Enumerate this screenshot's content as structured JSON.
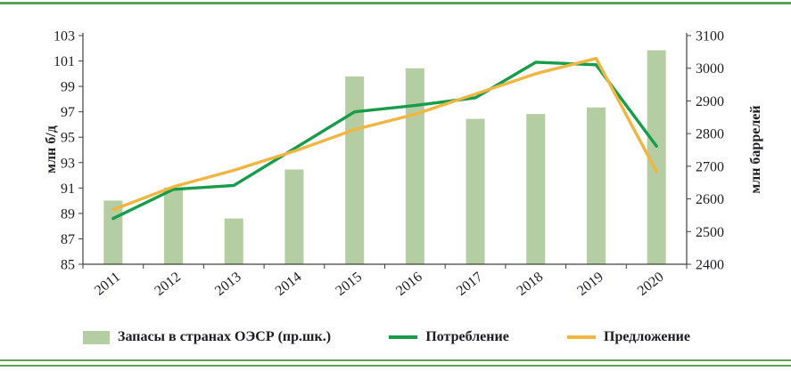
{
  "page": {
    "divider_color": "#5aa457",
    "text_color": "#1c1c24",
    "axis_color": "#404040"
  },
  "chart_data": {
    "type": "combo-bar-line",
    "categories": [
      "2011",
      "2012",
      "2013",
      "2014",
      "2015",
      "2016",
      "2017",
      "2018",
      "2019",
      "2020"
    ],
    "bar_series": {
      "name": "Запасы в странах ОЭСР (пр.шк.)",
      "axis": "right",
      "color": "#b5cda2",
      "values": [
        2595,
        2635,
        2540,
        2690,
        2975,
        3000,
        2845,
        2860,
        2880,
        3055
      ]
    },
    "line_series": [
      {
        "name": "Потребление",
        "axis": "left",
        "color": "#169c4b",
        "values": [
          88.6,
          90.9,
          91.2,
          94.1,
          97.0,
          97.5,
          98.1,
          100.9,
          100.7,
          94.3
        ]
      },
      {
        "name": "Предложение",
        "axis": "left",
        "color": "#f1b542",
        "values": [
          89.3,
          91.1,
          92.4,
          93.9,
          95.6,
          96.8,
          98.4,
          100.0,
          101.2,
          92.3
        ]
      }
    ],
    "left_axis": {
      "label": "млн б/д",
      "min": 85,
      "max": 103,
      "step": 2
    },
    "right_axis": {
      "label": "млн баррелей",
      "min": 2400,
      "max": 3100,
      "step": 100
    },
    "grid": false,
    "legend_position": "bottom"
  }
}
